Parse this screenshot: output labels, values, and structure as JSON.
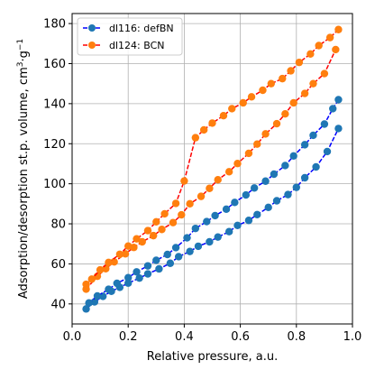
{
  "chart_data": {
    "type": "line",
    "title": "",
    "xlabel": "Relative pressure, a.u.",
    "ylabel": "Adsorption/desorption st.p. volume, cm",
    "ylabel_superscript_1": "3",
    "ylabel_middle": "·g",
    "ylabel_superscript_2": "−1",
    "xlim": [
      0.0,
      1.0
    ],
    "ylim": [
      30,
      185
    ],
    "xticks": [
      0.0,
      0.2,
      0.4,
      0.6,
      0.8,
      1.0
    ],
    "xtick_labels": [
      "0.0",
      "0.2",
      "0.4",
      "0.6",
      "0.8",
      "1.0"
    ],
    "yticks": [
      40,
      60,
      80,
      100,
      120,
      140,
      160,
      180
    ],
    "ytick_labels": [
      "40",
      "60",
      "80",
      "100",
      "120",
      "140",
      "160",
      "180"
    ],
    "grid": true,
    "legend_position": "top-left",
    "series": [
      {
        "name": "dl116: defBN",
        "color": "#1f77b4",
        "line_color": "#0000ff",
        "marker": "circle",
        "adsorption": {
          "x": [
            0.05,
            0.08,
            0.11,
            0.14,
            0.17,
            0.2,
            0.24,
            0.27,
            0.31,
            0.35,
            0.38,
            0.42,
            0.45,
            0.49,
            0.52,
            0.56,
            0.59,
            0.63,
            0.66,
            0.7,
            0.73,
            0.77,
            0.8,
            0.83,
            0.87,
            0.91,
            0.95
          ],
          "y": [
            37.5,
            41.0,
            43.8,
            46.3,
            48.3,
            50.4,
            52.9,
            55.0,
            57.5,
            60.3,
            63.6,
            66.2,
            68.8,
            71.0,
            73.4,
            76.1,
            79.2,
            81.7,
            84.6,
            88.2,
            91.5,
            94.6,
            98.2,
            103.0,
            108.4,
            116.1,
            127.6
          ]
        },
        "desorption": {
          "x": [
            0.95,
            0.93,
            0.9,
            0.86,
            0.83,
            0.79,
            0.76,
            0.72,
            0.69,
            0.65,
            0.62,
            0.58,
            0.55,
            0.51,
            0.48,
            0.44,
            0.41,
            0.37,
            0.34,
            0.3,
            0.27,
            0.23,
            0.2,
            0.16,
            0.13,
            0.09,
            0.06
          ],
          "y": [
            142.0,
            137.5,
            129.8,
            124.2,
            119.5,
            113.9,
            109.1,
            104.8,
            101.3,
            97.9,
            94.4,
            90.7,
            87.3,
            84.1,
            81.1,
            77.7,
            73.0,
            68.1,
            64.7,
            61.8,
            59.0,
            56.0,
            53.1,
            50.3,
            47.3,
            44.0,
            40.5
          ]
        }
      },
      {
        "name": "dl124: BCN",
        "color": "#ff7f0e",
        "line_color": "#ff0000",
        "marker": "circle",
        "adsorption": {
          "x": [
            0.05,
            0.09,
            0.12,
            0.15,
            0.19,
            0.22,
            0.25,
            0.29,
            0.32,
            0.36,
            0.39,
            0.42,
            0.46,
            0.49,
            0.52,
            0.56,
            0.59,
            0.63,
            0.66,
            0.69,
            0.73,
            0.76,
            0.79,
            0.83,
            0.86,
            0.9,
            0.94
          ],
          "y": [
            47.4,
            53.8,
            57.6,
            61.0,
            65.0,
            68.2,
            71.0,
            74.1,
            77.2,
            80.6,
            84.5,
            90.0,
            93.7,
            97.7,
            102.0,
            106.0,
            110.1,
            115.2,
            119.8,
            124.9,
            130.0,
            134.9,
            140.4,
            145.1,
            150.0,
            155.0,
            167.0
          ]
        },
        "desorption": {
          "x": [
            0.95,
            0.92,
            0.88,
            0.85,
            0.81,
            0.78,
            0.75,
            0.71,
            0.68,
            0.64,
            0.61,
            0.57,
            0.54,
            0.5,
            0.47,
            0.44,
            0.4,
            0.37,
            0.33,
            0.3,
            0.27,
            0.23,
            0.2,
            0.17,
            0.13,
            0.1,
            0.07,
            0.05
          ],
          "y": [
            177.0,
            173.0,
            169.0,
            164.8,
            160.6,
            156.4,
            152.5,
            150.0,
            146.7,
            143.4,
            140.4,
            137.5,
            134.0,
            130.3,
            126.9,
            123.0,
            101.4,
            90.2,
            85.0,
            81.0,
            76.6,
            72.5,
            68.9,
            64.8,
            60.7,
            57.0,
            52.4,
            49.8
          ]
        }
      }
    ]
  }
}
